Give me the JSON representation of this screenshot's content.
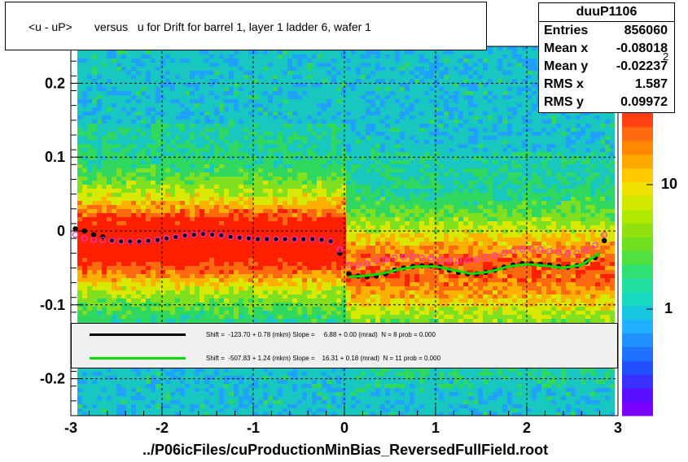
{
  "title": "<u - uP>       versus   u for Drift for barrel 1, layer 1 ladder 6, wafer 1",
  "stats": {
    "name": "duuP1106",
    "rows": [
      {
        "label": "Entries",
        "value": "856060"
      },
      {
        "label": "Mean x",
        "value": "-0.08018"
      },
      {
        "label": "Mean y",
        "value": "-0.02237"
      },
      {
        "label": "RMS x",
        "value": "1.587"
      },
      {
        "label": "RMS y",
        "value": "0.09972"
      }
    ]
  },
  "legend": {
    "entries": [
      {
        "color": "#000000",
        "text": "Shift =  -123.70 + 0.78 (mkm) Slope =     6.88 + 0.00 (mrad)  N = 8 prob = 0.000"
      },
      {
        "color": "#00dd00",
        "text": "Shift =  -507.83 + 1.24 (mkm) Slope =    16.31 + 0.18 (mrad)  N = 11 prob = 0.000"
      }
    ]
  },
  "colorbar": {
    "labels": [
      "10",
      "1"
    ],
    "exponent": "2"
  },
  "xaxis_title": "../P06icFiles/cuProductionMinBias_ReversedFullField.root",
  "chart_data": {
    "type": "heatmap",
    "xlim": [
      -3,
      3
    ],
    "ylim": [
      -0.25,
      0.25
    ],
    "xticks": [
      "-3",
      "-2",
      "-1",
      "0",
      "1",
      "2",
      "3"
    ],
    "yticks": [
      "0.2",
      "0.1",
      "0",
      "-0.1",
      "-0.2"
    ],
    "grid": true,
    "series": [
      {
        "marker": "filled-circle",
        "color": "#000000",
        "x": [
          -2.95,
          -2.85,
          -2.75,
          -2.65,
          -2.55,
          -2.45,
          -2.35,
          -2.25,
          -2.15,
          -2.05,
          -1.95,
          -1.85,
          -1.75,
          -1.65,
          -1.55,
          -1.45,
          -1.35,
          -1.25,
          -1.15,
          -1.05,
          -0.95,
          -0.85,
          -0.75,
          -0.65,
          -0.55,
          -0.45,
          -0.35,
          -0.25,
          -0.15,
          -0.05,
          0.05,
          0.15,
          0.25,
          0.35,
          0.45,
          0.55,
          0.65,
          0.75,
          0.85,
          0.95,
          1.05,
          1.15,
          1.25,
          1.35,
          1.45,
          1.55,
          1.65,
          1.75,
          1.85,
          1.95,
          2.05,
          2.15,
          2.25,
          2.35,
          2.45,
          2.55,
          2.65,
          2.75,
          2.85
        ],
        "y": [
          0.003,
          0.0,
          -0.005,
          -0.008,
          -0.012,
          -0.014,
          -0.015,
          -0.015,
          -0.014,
          -0.013,
          -0.011,
          -0.009,
          -0.007,
          -0.005,
          -0.004,
          -0.004,
          -0.005,
          -0.007,
          -0.009,
          -0.01,
          -0.011,
          -0.011,
          -0.011,
          -0.011,
          -0.011,
          -0.011,
          -0.011,
          -0.012,
          -0.014,
          -0.03,
          -0.058,
          -0.061,
          -0.062,
          -0.061,
          -0.058,
          -0.053,
          -0.05,
          -0.048,
          -0.047,
          -0.047,
          -0.049,
          -0.053,
          -0.056,
          -0.058,
          -0.058,
          -0.056,
          -0.053,
          -0.049,
          -0.046,
          -0.044,
          -0.044,
          -0.045,
          -0.046,
          -0.048,
          -0.049,
          -0.047,
          -0.042,
          -0.036,
          -0.013
        ]
      },
      {
        "marker": "open-circle",
        "color": "#ff33cc",
        "x": [
          -2.95,
          -2.85,
          -2.75,
          -2.65,
          -2.55,
          -2.45,
          -2.35,
          -2.25,
          -2.15,
          -2.05,
          -1.95,
          -1.85,
          -1.75,
          -1.65,
          -1.55,
          -1.45,
          -1.35,
          -1.25,
          -1.15,
          -1.05,
          -0.95,
          -0.85,
          -0.75,
          -0.65,
          -0.55,
          -0.45,
          -0.35,
          -0.25,
          -0.15,
          -0.05,
          0.05,
          0.15,
          0.25,
          0.35,
          0.45,
          0.55,
          0.65,
          0.75,
          0.85,
          0.95,
          1.05,
          1.15,
          1.25,
          1.35,
          1.45,
          1.55,
          1.65,
          1.75,
          1.85,
          1.95,
          2.05,
          2.15,
          2.25,
          2.35,
          2.45,
          2.55,
          2.65,
          2.75,
          2.85
        ],
        "y": [
          -0.005,
          -0.01,
          -0.012,
          -0.012,
          -0.013,
          -0.014,
          -0.014,
          -0.014,
          -0.013,
          -0.012,
          -0.01,
          -0.008,
          -0.006,
          -0.005,
          -0.004,
          -0.005,
          -0.006,
          -0.008,
          -0.009,
          -0.01,
          -0.011,
          -0.011,
          -0.011,
          -0.011,
          -0.011,
          -0.011,
          -0.011,
          -0.012,
          -0.014,
          -0.025,
          -0.046,
          -0.046,
          -0.044,
          -0.04,
          -0.038,
          -0.036,
          -0.035,
          -0.035,
          -0.036,
          -0.037,
          -0.039,
          -0.04,
          -0.04,
          -0.04,
          -0.038,
          -0.036,
          -0.033,
          -0.03,
          -0.027,
          -0.025,
          -0.024,
          -0.025,
          -0.027,
          -0.029,
          -0.03,
          -0.03,
          -0.026,
          -0.019,
          -0.005
        ]
      },
      {
        "marker": "line",
        "color": "#00dd00",
        "x": [
          0.05,
          0.2,
          0.4,
          0.6,
          0.8,
          1.0,
          1.2,
          1.4,
          1.6,
          1.8,
          2.0,
          2.2,
          2.4,
          2.6,
          2.8
        ],
        "y": [
          -0.062,
          -0.061,
          -0.058,
          -0.052,
          -0.048,
          -0.048,
          -0.053,
          -0.058,
          -0.055,
          -0.048,
          -0.045,
          -0.047,
          -0.05,
          -0.046,
          -0.03
        ]
      }
    ]
  }
}
